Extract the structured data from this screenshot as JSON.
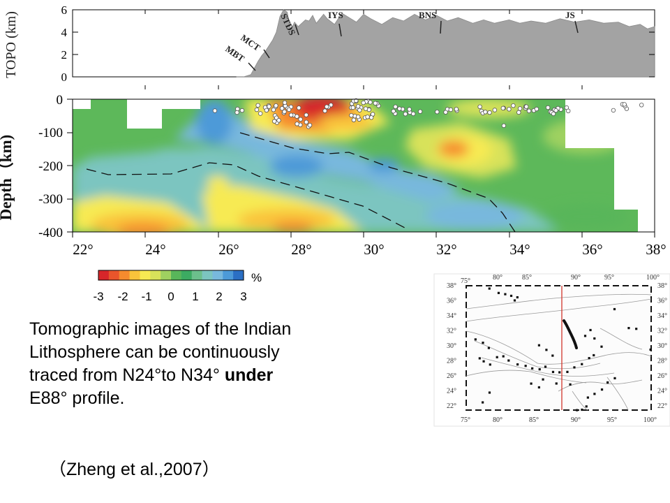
{
  "topo": {
    "ylabel": "TOPO (km)",
    "ticks": [
      "0",
      "2",
      "4",
      "6"
    ],
    "profile_km": [
      [
        26.7,
        0
      ],
      [
        26.9,
        0.2
      ],
      [
        27.0,
        0.8
      ],
      [
        27.1,
        1.4
      ],
      [
        27.2,
        1.9
      ],
      [
        27.3,
        2.3
      ],
      [
        27.4,
        2.8
      ],
      [
        27.5,
        3.3
      ],
      [
        27.6,
        4.0
      ],
      [
        27.7,
        5.4
      ],
      [
        27.8,
        6.0
      ],
      [
        27.9,
        5.8
      ],
      [
        28.0,
        4.2
      ],
      [
        28.1,
        4.9
      ],
      [
        28.2,
        4.5
      ],
      [
        28.4,
        5.1
      ],
      [
        28.5,
        5.0
      ],
      [
        28.6,
        5.5
      ],
      [
        28.7,
        4.8
      ],
      [
        28.9,
        5.6
      ],
      [
        29.0,
        5.2
      ],
      [
        29.2,
        4.7
      ],
      [
        29.4,
        5.7
      ],
      [
        29.6,
        5.3
      ],
      [
        29.8,
        4.9
      ],
      [
        30.0,
        5.6
      ],
      [
        30.2,
        5.2
      ],
      [
        30.5,
        4.7
      ],
      [
        30.8,
        5.3
      ],
      [
        31.1,
        5.0
      ],
      [
        31.4,
        5.6
      ],
      [
        31.7,
        5.1
      ],
      [
        32.0,
        5.5
      ],
      [
        32.3,
        5.0
      ],
      [
        32.6,
        5.3
      ],
      [
        33.0,
        4.8
      ],
      [
        33.3,
        5.1
      ],
      [
        33.6,
        4.8
      ],
      [
        34.0,
        5.1
      ],
      [
        34.3,
        4.8
      ],
      [
        34.6,
        5.0
      ],
      [
        35.0,
        4.8
      ],
      [
        35.4,
        5.2
      ],
      [
        35.8,
        4.9
      ],
      [
        36.2,
        5.1
      ],
      [
        36.6,
        4.8
      ],
      [
        37.0,
        4.9
      ],
      [
        37.3,
        4.5
      ],
      [
        37.6,
        4.7
      ],
      [
        37.8,
        4.3
      ],
      [
        38.0,
        4.5
      ]
    ],
    "labels": [
      {
        "text": "MBT",
        "x": 27.0
      },
      {
        "text": "MCT",
        "x": 27.2
      },
      {
        "text": "STDS",
        "x": 27.9
      },
      {
        "text": "IYS",
        "x": 29.3
      },
      {
        "text": "BNS",
        "x": 32.1
      },
      {
        "text": "JS",
        "x": 35.7
      }
    ]
  },
  "section": {
    "ylabel": "Depth（km)",
    "depth_ticks": [
      "0",
      "-100",
      "-200",
      "-300",
      "-400"
    ],
    "lat_ticks": [
      "22°",
      "24°",
      "26°",
      "28°",
      "30°",
      "32°",
      "34°",
      "36°",
      "38°"
    ]
  },
  "colorbar": {
    "unit": "%",
    "ticks": [
      "-3",
      "-2",
      "-1",
      "0",
      "1",
      "2",
      "3"
    ],
    "colors": [
      "#d7262a",
      "#e9552b",
      "#f58b2e",
      "#f9c33b",
      "#f7ea52",
      "#d8e25a",
      "#9fd160",
      "#58b65a",
      "#3cab62",
      "#6cbf8c",
      "#7cc5c0",
      "#78b8dd",
      "#4d9ad8",
      "#2b6fc4"
    ]
  },
  "caption": {
    "line1": "Tomographic images of the Indian",
    "line2": "Lithosphere can be continuously",
    "line3a": "traced  from N24°to N34°",
    "line3b": "under",
    "line4": "E88° profile."
  },
  "citation": "（Zheng et al.,2007）",
  "inset_map": {
    "lon_ticks": [
      "75°",
      "80°",
      "85°",
      "90°",
      "95°",
      "100°"
    ],
    "lat_ticks": [
      "38°",
      "36°",
      "34°",
      "32°",
      "30°",
      "28°",
      "26°",
      "24°",
      "22°"
    ],
    "profile_lon": 88
  }
}
